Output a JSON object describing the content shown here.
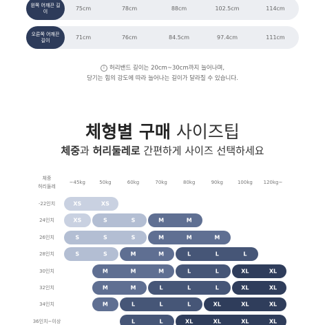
{
  "strap_table": {
    "rows": [
      {
        "label": "왼쪽 어깨끈 길이",
        "values": [
          "75cm",
          "78cm",
          "88cm",
          "102.5cm",
          "114cm"
        ]
      },
      {
        "label": "오른쪽 어깨끈 길이",
        "values": [
          "71cm",
          "76cm",
          "84.5cm",
          "97.4cm",
          "111cm"
        ]
      }
    ]
  },
  "notes": [
    "허리밴드 길이는 20cm~30cm까지 늘어나며,",
    "당기는 힘의 강도에 따라 늘어나는 길이가 달라질 수 있습니다."
  ],
  "title": [
    "체형별 구매",
    "사이즈팁"
  ],
  "subtitle": [
    "체중",
    "과 ",
    "허리둘레로",
    " 간편하게 사이즈 선택하세요"
  ],
  "size_table": {
    "corner": [
      "체중",
      "허리둘레"
    ],
    "columns": [
      "~45kg",
      "50kg",
      "60kg",
      "70kg",
      "80kg",
      "90kg",
      "100kg",
      "120kg~"
    ],
    "size_colors": {
      "XS": "#c9d1e1",
      "S": "#b3bed3",
      "M": "#5f6f92",
      "L": "#465677",
      "XL": "#2f3d5b"
    },
    "rows": [
      {
        "label": "-22인치",
        "cells": [
          "XS",
          "XS",
          null,
          null,
          null,
          null,
          null,
          null
        ]
      },
      {
        "label": "24인치",
        "cells": [
          "XS",
          "S",
          "S",
          "M",
          "M",
          null,
          null,
          null
        ]
      },
      {
        "label": "26인치",
        "cells": [
          "S",
          "S",
          "S",
          "M",
          "M",
          "M",
          null,
          null
        ]
      },
      {
        "label": "28인치",
        "cells": [
          "S",
          "S",
          "M",
          "M",
          "L",
          "L",
          "L",
          null
        ]
      },
      {
        "label": "30인치",
        "cells": [
          null,
          "M",
          "M",
          "M",
          "L",
          "L",
          "XL",
          "XL"
        ]
      },
      {
        "label": "32인치",
        "cells": [
          null,
          "M",
          "M",
          "L",
          "L",
          "L",
          "XL",
          "XL"
        ]
      },
      {
        "label": "34인치",
        "cells": [
          null,
          "M",
          "L",
          "L",
          "L",
          "XL",
          "XL",
          "XL"
        ]
      },
      {
        "label": "36인치~이상",
        "cells": [
          null,
          null,
          "L",
          "L",
          "XL",
          "XL",
          "XL",
          "XL"
        ]
      }
    ]
  }
}
